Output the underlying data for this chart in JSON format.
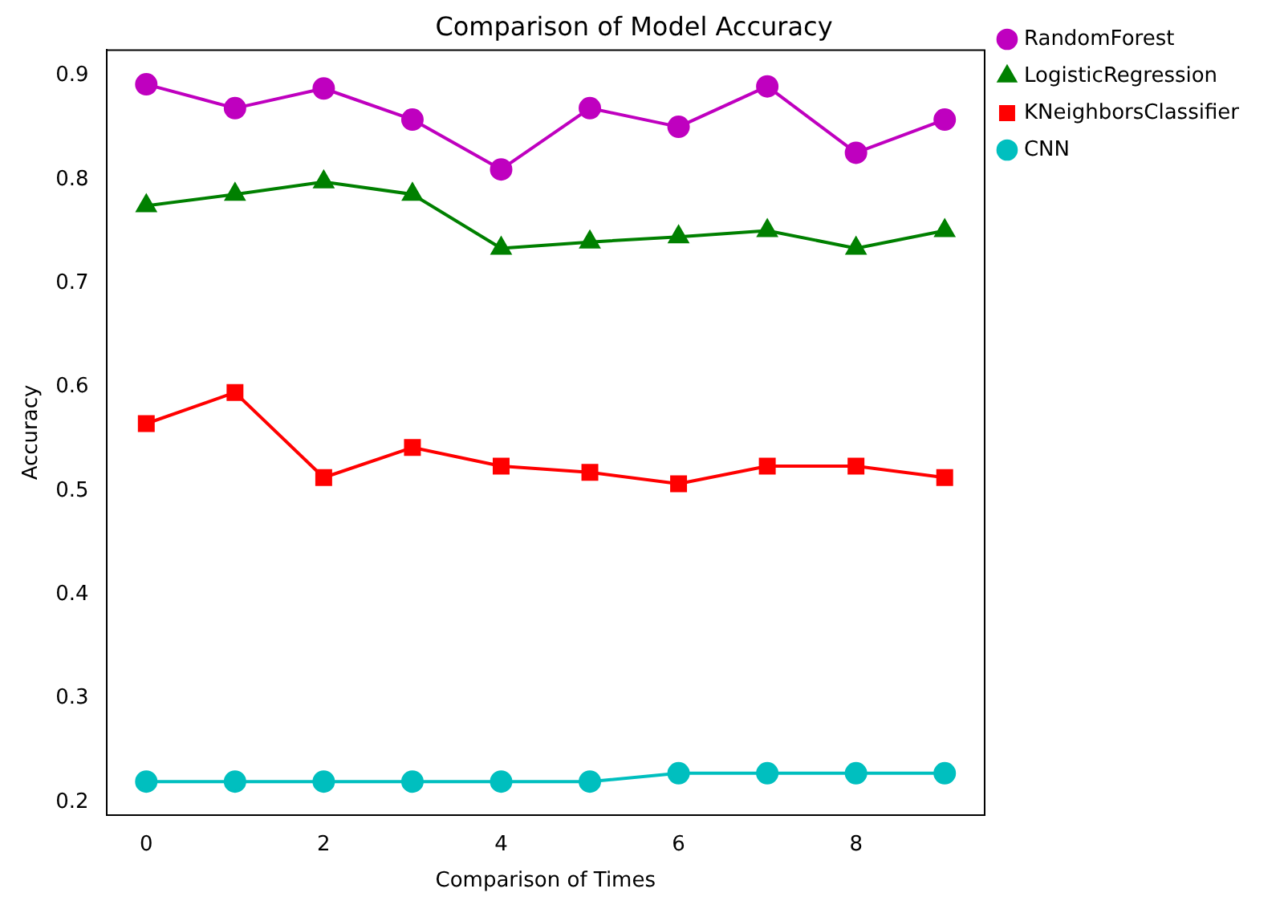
{
  "chart_data": {
    "type": "line",
    "title": "Comparison of Model Accuracy",
    "xlabel": "Comparison of Times",
    "ylabel": "Accuracy",
    "x": [
      0,
      1,
      2,
      3,
      4,
      5,
      6,
      7,
      8,
      9
    ],
    "xlim": [
      -0.45,
      9.45
    ],
    "xticks": [
      0,
      2,
      4,
      6,
      8
    ],
    "ylim": [
      0.188,
      0.925
    ],
    "yticks": [
      0.2,
      0.3,
      0.4,
      0.5,
      0.6,
      0.7,
      0.8,
      0.9
    ],
    "grid": false,
    "legend": "top right",
    "line_style": "solid",
    "series": [
      {
        "name": "RandomForest",
        "color": "#bf00bf",
        "marker": "circle",
        "values": [
          0.892,
          0.869,
          0.888,
          0.858,
          0.81,
          0.869,
          0.851,
          0.89,
          0.826,
          0.858
        ]
      },
      {
        "name": "LogisticRegression",
        "color": "#008000",
        "marker": "triangle",
        "values": [
          0.775,
          0.786,
          0.798,
          0.786,
          0.734,
          0.74,
          0.745,
          0.751,
          0.734,
          0.751
        ]
      },
      {
        "name": "KNeighborsClassifier",
        "color": "#ff0000",
        "marker": "square",
        "values": [
          0.565,
          0.595,
          0.513,
          0.542,
          0.524,
          0.518,
          0.507,
          0.524,
          0.524,
          0.513
        ]
      },
      {
        "name": "CNN",
        "color": "#00bfbf",
        "marker": "circle",
        "values": [
          0.22,
          0.22,
          0.22,
          0.22,
          0.22,
          0.22,
          0.228,
          0.228,
          0.228,
          0.228
        ]
      }
    ]
  }
}
